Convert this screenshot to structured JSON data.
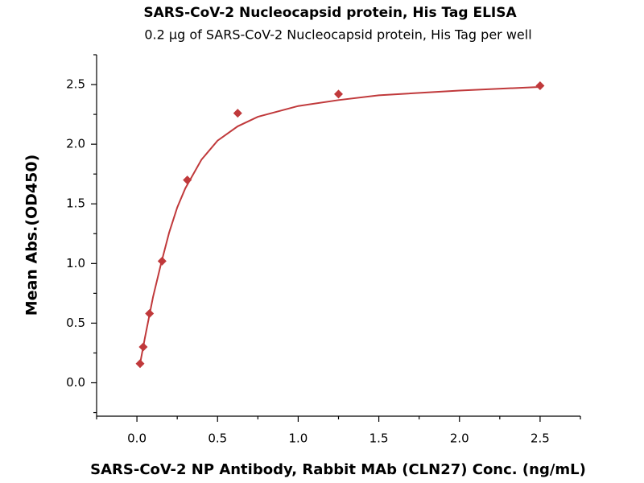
{
  "chart_data": {
    "type": "scatter",
    "title": "SARS-CoV-2 Nucleocapsid protein, His Tag ELISA",
    "subtitle": "0.2 μg of SARS-CoV-2 Nucleocapsid protein, His Tag per well",
    "x_label": "SARS-CoV-2 NP Antibody, Rabbit MAb (CLN27) Conc. (ng/mL)",
    "y_label": "Mean Abs.(OD450)",
    "color": "#c0393b",
    "x": [
      0.0195,
      0.039,
      0.078,
      0.156,
      0.3125,
      0.625,
      1.25,
      2.5
    ],
    "values": [
      0.16,
      0.3,
      0.58,
      1.02,
      1.7,
      2.26,
      2.42,
      2.49
    ],
    "fit": {
      "x": [
        0.0195,
        0.05,
        0.1,
        0.15,
        0.2,
        0.25,
        0.3,
        0.4,
        0.5,
        0.625,
        0.75,
        1.0,
        1.25,
        1.5,
        2.0,
        2.5
      ],
      "values": [
        0.16,
        0.38,
        0.72,
        1.0,
        1.26,
        1.47,
        1.63,
        1.87,
        2.03,
        2.15,
        2.23,
        2.32,
        2.37,
        2.41,
        2.45,
        2.48
      ]
    },
    "xlim": [
      -0.25,
      2.75
    ],
    "ylim": [
      -0.28,
      2.75
    ],
    "xticks": [
      {
        "value": 0,
        "label": "0.0"
      },
      0.5,
      {
        "value": 1,
        "label": "1.0"
      },
      1.5,
      {
        "value": 2,
        "label": "2.0"
      },
      2.5
    ],
    "yticks": [
      {
        "value": 0,
        "label": "0.0"
      },
      0.5,
      {
        "value": 1,
        "label": "1.0"
      },
      1.5,
      {
        "value": 2,
        "label": "2.0"
      },
      2.5
    ],
    "x_minor_ticks": [
      -0.25,
      0.25,
      0.75,
      1.25,
      1.75,
      2.25,
      2.75
    ],
    "y_minor_ticks": [
      -0.25,
      0.25,
      0.75,
      1.25,
      1.75,
      2.25,
      2.75
    ]
  }
}
